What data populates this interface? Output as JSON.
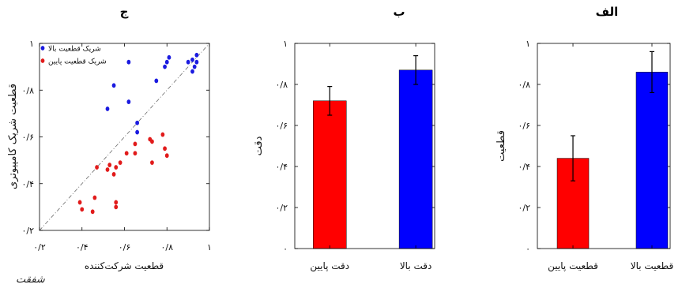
{
  "signature": "شفقت",
  "chart_data": [
    {
      "type": "scatter",
      "title": "ج",
      "xlabel": "قطعیت شرکت‌کننده",
      "ylabel": "قطعیت شریک کامپیوتری",
      "xlim": [
        0.2,
        1
      ],
      "ylim": [
        0.2,
        1
      ],
      "xticks": [
        {
          "value": 0.2,
          "label": "۰/۲"
        },
        {
          "value": 0.4,
          "label": "۰/۴"
        },
        {
          "value": 0.6,
          "label": "۰/۶"
        },
        {
          "value": 0.8,
          "label": "۰/۸"
        },
        {
          "value": 1,
          "label": "۱"
        }
      ],
      "yticks": [
        {
          "value": 0.2,
          "label": "۰/۲"
        },
        {
          "value": 0.4,
          "label": "۰/۴"
        },
        {
          "value": 0.6,
          "label": "۰/۶"
        },
        {
          "value": 0.8,
          "label": "۰/۸"
        },
        {
          "value": 1,
          "label": "۱"
        }
      ],
      "reference_line": {
        "from": [
          0.2,
          0.2
        ],
        "to": [
          1,
          1
        ]
      },
      "grid": false,
      "legend": "top-left",
      "series": [
        {
          "name": "شریک قطعیت بالا",
          "color": "#1b1be0",
          "points": [
            [
              0.62,
              0.92
            ],
            [
              0.81,
              0.94
            ],
            [
              0.8,
              0.92
            ],
            [
              0.79,
              0.9
            ],
            [
              0.9,
              0.92
            ],
            [
              0.92,
              0.93
            ],
            [
              0.94,
              0.95
            ],
            [
              0.94,
              0.92
            ],
            [
              0.93,
              0.9
            ],
            [
              0.92,
              0.88
            ],
            [
              0.75,
              0.84
            ],
            [
              0.55,
              0.82
            ],
            [
              0.62,
              0.75
            ],
            [
              0.52,
              0.72
            ],
            [
              0.66,
              0.66
            ],
            [
              0.66,
              0.62
            ]
          ]
        },
        {
          "name": "شریک قطعیت پایین",
          "color": "#e11b1b",
          "points": [
            [
              0.78,
              0.61
            ],
            [
              0.72,
              0.59
            ],
            [
              0.73,
              0.58
            ],
            [
              0.65,
              0.57
            ],
            [
              0.79,
              0.55
            ],
            [
              0.8,
              0.52
            ],
            [
              0.73,
              0.49
            ],
            [
              0.65,
              0.53
            ],
            [
              0.61,
              0.53
            ],
            [
              0.58,
              0.49
            ],
            [
              0.56,
              0.47
            ],
            [
              0.53,
              0.48
            ],
            [
              0.52,
              0.46
            ],
            [
              0.47,
              0.47
            ],
            [
              0.55,
              0.44
            ],
            [
              0.56,
              0.32
            ],
            [
              0.56,
              0.3
            ],
            [
              0.46,
              0.34
            ],
            [
              0.45,
              0.28
            ],
            [
              0.39,
              0.32
            ],
            [
              0.4,
              0.29
            ]
          ]
        }
      ]
    },
    {
      "type": "bar",
      "title": "ب",
      "ylabel": "دقت",
      "categories": [
        "دقت پایین",
        "دقت بالا"
      ],
      "values": [
        0.72,
        0.87
      ],
      "errors": [
        0.07,
        0.07
      ],
      "colors": [
        "#ff0000",
        "#0000ff"
      ],
      "ylim": [
        0,
        1
      ],
      "grid": false,
      "yticks": [
        {
          "value": 0,
          "label": "۰"
        },
        {
          "value": 0.2,
          "label": "۰/۲"
        },
        {
          "value": 0.4,
          "label": "۰/۴"
        },
        {
          "value": 0.6,
          "label": "۰/۶"
        },
        {
          "value": 0.8,
          "label": "۰/۸"
        },
        {
          "value": 1,
          "label": "۱"
        }
      ]
    },
    {
      "type": "bar",
      "title": "الف",
      "ylabel": "قطعیت",
      "categories": [
        "قطعیت پایین",
        "قطعیت بالا"
      ],
      "values": [
        0.44,
        0.86
      ],
      "errors": [
        0.11,
        0.1
      ],
      "colors": [
        "#ff0000",
        "#0000ff"
      ],
      "ylim": [
        0,
        1
      ],
      "grid": false,
      "yticks": [
        {
          "value": 0,
          "label": "۰"
        },
        {
          "value": 0.2,
          "label": "۰/۲"
        },
        {
          "value": 0.4,
          "label": "۰/۴"
        },
        {
          "value": 0.6,
          "label": "۰/۶"
        },
        {
          "value": 0.8,
          "label": "۰/۸"
        },
        {
          "value": 1,
          "label": "۱"
        }
      ]
    }
  ]
}
